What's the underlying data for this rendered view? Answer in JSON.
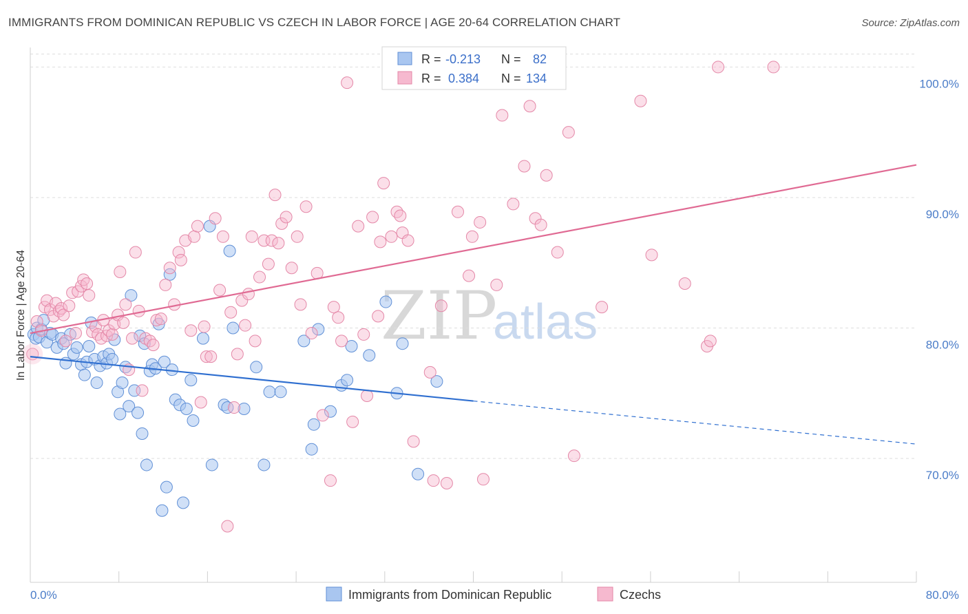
{
  "header": {
    "title": "IMMIGRANTS FROM DOMINICAN REPUBLIC VS CZECH IN LABOR FORCE | AGE 20-64 CORRELATION CHART",
    "source": "Source: ZipAtlas.com"
  },
  "watermark": {
    "zip": "ZIP",
    "atlas": "atlas"
  },
  "legend_box": {
    "rows": [
      {
        "r_label": "R =",
        "r_value": "-0.213",
        "n_label": "N =",
        "n_value": "82"
      },
      {
        "r_label": "R =",
        "r_value": "0.384",
        "n_label": "N =",
        "n_value": "134"
      }
    ]
  },
  "bottom_legend": {
    "items": [
      {
        "label": "Immigrants from Dominican Republic"
      },
      {
        "label": "Czechs"
      }
    ]
  },
  "chart_data": {
    "type": "scatter",
    "title": "IMMIGRANTS FROM DOMINICAN REPUBLIC VS CZECH IN LABOR FORCE | AGE 20-64 CORRELATION CHART",
    "xlabel": "",
    "ylabel": "In Labor Force | Age 20-64",
    "xlim": [
      0,
      80
    ],
    "ylim": [
      60.5,
      101.5
    ],
    "x_tick_labels": [
      "0.0%",
      "80.0%"
    ],
    "y_ticks": [
      70,
      80,
      90,
      100
    ],
    "y_tick_labels": [
      "70.0%",
      "80.0%",
      "90.0%",
      "100.0%"
    ],
    "grid": true,
    "legend_position": "top-center",
    "colors": {
      "blue_fill": "#a9c6f0",
      "blue_stroke": "#5f8fd6",
      "blue_line": "#2f6fd0",
      "pink_fill": "#f6b9cf",
      "pink_stroke": "#e487a7",
      "pink_line": "#e06a93"
    },
    "series": [
      {
        "name": "Immigrants from Dominican Republic",
        "color": "#a9c6f0",
        "trend": {
          "x": [
            0,
            40
          ],
          "y": [
            77.8,
            74.4
          ],
          "dashed_to": [
            80,
            71.1
          ]
        },
        "points": [
          [
            0.3,
            79.5
          ],
          [
            0.5,
            79.2
          ],
          [
            0.6,
            80.0
          ],
          [
            0.8,
            79.3
          ],
          [
            1.0,
            79.9
          ],
          [
            1.2,
            80.6
          ],
          [
            1.5,
            78.9
          ],
          [
            1.8,
            79.6
          ],
          [
            2.0,
            79.5
          ],
          [
            2.4,
            78.5
          ],
          [
            2.8,
            79.2
          ],
          [
            3.0,
            78.8
          ],
          [
            3.2,
            77.3
          ],
          [
            3.6,
            79.5
          ],
          [
            3.9,
            78.0
          ],
          [
            4.2,
            78.5
          ],
          [
            4.6,
            77.2
          ],
          [
            4.9,
            76.4
          ],
          [
            5.1,
            77.4
          ],
          [
            5.3,
            78.6
          ],
          [
            5.5,
            80.4
          ],
          [
            5.8,
            77.6
          ],
          [
            6.0,
            75.8
          ],
          [
            6.3,
            77.1
          ],
          [
            6.6,
            77.8
          ],
          [
            6.9,
            77.3
          ],
          [
            7.1,
            78.0
          ],
          [
            7.4,
            77.6
          ],
          [
            7.6,
            79.1
          ],
          [
            7.9,
            75.1
          ],
          [
            8.1,
            73.4
          ],
          [
            8.3,
            75.8
          ],
          [
            8.6,
            77.0
          ],
          [
            8.9,
            74.0
          ],
          [
            9.1,
            82.5
          ],
          [
            9.4,
            75.2
          ],
          [
            9.7,
            73.5
          ],
          [
            9.9,
            79.4
          ],
          [
            10.1,
            71.9
          ],
          [
            10.3,
            78.8
          ],
          [
            10.5,
            69.5
          ],
          [
            10.8,
            76.7
          ],
          [
            11.0,
            77.2
          ],
          [
            11.3,
            76.9
          ],
          [
            11.6,
            80.3
          ],
          [
            11.9,
            66.0
          ],
          [
            12.1,
            77.4
          ],
          [
            12.3,
            67.8
          ],
          [
            12.6,
            84.1
          ],
          [
            12.8,
            76.8
          ],
          [
            13.1,
            74.5
          ],
          [
            13.5,
            74.1
          ],
          [
            13.8,
            66.6
          ],
          [
            14.1,
            73.8
          ],
          [
            14.5,
            76.0
          ],
          [
            14.7,
            72.9
          ],
          [
            15.6,
            79.2
          ],
          [
            16.2,
            87.8
          ],
          [
            16.4,
            69.5
          ],
          [
            17.5,
            74.1
          ],
          [
            17.8,
            73.9
          ],
          [
            18.0,
            85.9
          ],
          [
            18.3,
            80.0
          ],
          [
            19.3,
            73.8
          ],
          [
            20.4,
            77.0
          ],
          [
            21.1,
            69.5
          ],
          [
            21.6,
            75.1
          ],
          [
            22.6,
            75.1
          ],
          [
            24.7,
            79.0
          ],
          [
            25.4,
            70.7
          ],
          [
            25.6,
            72.6
          ],
          [
            26.0,
            79.9
          ],
          [
            27.1,
            73.6
          ],
          [
            28.1,
            75.6
          ],
          [
            28.6,
            76.0
          ],
          [
            29.0,
            78.6
          ],
          [
            30.6,
            77.9
          ],
          [
            32.1,
            82.0
          ],
          [
            33.1,
            75.0
          ],
          [
            33.6,
            78.8
          ],
          [
            35.0,
            68.8
          ],
          [
            36.7,
            75.9
          ]
        ]
      },
      {
        "name": "Czechs",
        "color": "#f6b9cf",
        "trend": {
          "x": [
            0,
            80
          ],
          "y": [
            79.6,
            92.5
          ]
        },
        "points": [
          [
            0.2,
            78.0
          ],
          [
            0.6,
            80.5
          ],
          [
            1.0,
            79.8
          ],
          [
            1.3,
            81.6
          ],
          [
            1.5,
            82.1
          ],
          [
            1.8,
            81.4
          ],
          [
            2.1,
            80.9
          ],
          [
            2.3,
            81.9
          ],
          [
            2.6,
            81.3
          ],
          [
            2.8,
            81.5
          ],
          [
            3.0,
            81.0
          ],
          [
            3.2,
            79.0
          ],
          [
            3.5,
            81.7
          ],
          [
            3.8,
            82.7
          ],
          [
            4.1,
            79.6
          ],
          [
            4.3,
            82.8
          ],
          [
            4.6,
            83.2
          ],
          [
            4.8,
            83.7
          ],
          [
            5.1,
            83.4
          ],
          [
            5.3,
            82.5
          ],
          [
            5.6,
            79.7
          ],
          [
            5.9,
            80.1
          ],
          [
            6.1,
            79.5
          ],
          [
            6.4,
            79.2
          ],
          [
            6.6,
            80.6
          ],
          [
            6.9,
            79.4
          ],
          [
            7.1,
            79.8
          ],
          [
            7.4,
            79.5
          ],
          [
            7.6,
            80.3
          ],
          [
            7.9,
            81.0
          ],
          [
            8.1,
            84.3
          ],
          [
            8.4,
            80.4
          ],
          [
            8.6,
            81.8
          ],
          [
            8.9,
            76.8
          ],
          [
            9.2,
            79.2
          ],
          [
            9.5,
            85.8
          ],
          [
            9.8,
            81.3
          ],
          [
            10.1,
            75.2
          ],
          [
            10.4,
            79.2
          ],
          [
            10.8,
            79.0
          ],
          [
            11.1,
            78.7
          ],
          [
            11.4,
            80.6
          ],
          [
            11.8,
            80.7
          ],
          [
            12.2,
            83.3
          ],
          [
            12.6,
            84.6
          ],
          [
            13.0,
            81.8
          ],
          [
            13.4,
            85.8
          ],
          [
            13.6,
            85.2
          ],
          [
            14.0,
            86.7
          ],
          [
            14.5,
            79.8
          ],
          [
            14.8,
            87.0
          ],
          [
            15.1,
            87.8
          ],
          [
            15.4,
            74.3
          ],
          [
            15.7,
            80.1
          ],
          [
            15.9,
            77.8
          ],
          [
            16.3,
            77.8
          ],
          [
            16.7,
            88.4
          ],
          [
            17.1,
            82.9
          ],
          [
            17.4,
            87.0
          ],
          [
            17.8,
            64.8
          ],
          [
            18.1,
            81.2
          ],
          [
            18.4,
            73.9
          ],
          [
            18.7,
            78.0
          ],
          [
            19.1,
            82.1
          ],
          [
            19.4,
            80.2
          ],
          [
            19.7,
            82.6
          ],
          [
            20.0,
            87.0
          ],
          [
            20.3,
            79.0
          ],
          [
            20.7,
            83.9
          ],
          [
            21.1,
            86.7
          ],
          [
            21.5,
            84.9
          ],
          [
            21.8,
            86.7
          ],
          [
            22.1,
            90.2
          ],
          [
            22.4,
            86.5
          ],
          [
            22.7,
            88.0
          ],
          [
            23.1,
            88.5
          ],
          [
            23.6,
            84.6
          ],
          [
            24.1,
            87.0
          ],
          [
            24.4,
            81.8
          ],
          [
            24.9,
            89.3
          ],
          [
            25.4,
            79.6
          ],
          [
            25.9,
            84.2
          ],
          [
            26.4,
            73.3
          ],
          [
            27.1,
            68.3
          ],
          [
            27.4,
            81.6
          ],
          [
            27.8,
            80.8
          ],
          [
            28.1,
            79.0
          ],
          [
            28.6,
            98.8
          ],
          [
            29.1,
            72.8
          ],
          [
            29.6,
            87.8
          ],
          [
            30.1,
            79.5
          ],
          [
            30.4,
            74.8
          ],
          [
            30.9,
            88.5
          ],
          [
            31.4,
            80.9
          ],
          [
            31.6,
            86.6
          ],
          [
            31.9,
            91.1
          ],
          [
            32.6,
            87.0
          ],
          [
            33.1,
            88.9
          ],
          [
            33.4,
            88.6
          ],
          [
            33.6,
            87.3
          ],
          [
            34.1,
            86.7
          ],
          [
            34.6,
            71.3
          ],
          [
            35.1,
            100.0
          ],
          [
            36.1,
            76.6
          ],
          [
            36.4,
            68.3
          ],
          [
            37.1,
            81.7
          ],
          [
            37.6,
            68.1
          ],
          [
            38.6,
            88.9
          ],
          [
            39.6,
            84.0
          ],
          [
            39.9,
            87.0
          ],
          [
            40.6,
            88.1
          ],
          [
            40.9,
            68.4
          ],
          [
            42.1,
            83.3
          ],
          [
            42.6,
            96.3
          ],
          [
            43.6,
            89.5
          ],
          [
            44.6,
            92.4
          ],
          [
            45.1,
            97.0
          ],
          [
            45.6,
            88.4
          ],
          [
            46.1,
            87.9
          ],
          [
            46.6,
            91.7
          ],
          [
            47.6,
            85.8
          ],
          [
            48.6,
            95.0
          ],
          [
            49.1,
            70.2
          ],
          [
            51.6,
            81.6
          ],
          [
            55.1,
            97.4
          ],
          [
            56.1,
            85.6
          ],
          [
            59.1,
            83.4
          ],
          [
            61.1,
            78.6
          ],
          [
            61.4,
            79.0
          ],
          [
            62.1,
            100.0
          ],
          [
            67.1,
            100.0
          ]
        ]
      }
    ]
  }
}
